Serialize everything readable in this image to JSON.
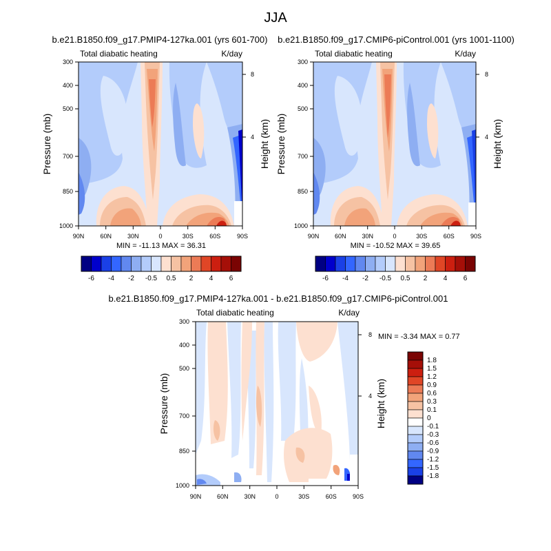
{
  "figure": {
    "title": "JJA"
  },
  "palette": {
    "full": [
      "#000083",
      "#0000cc",
      "#1a40e6",
      "#3366ff",
      "#6188f0",
      "#8eaef2",
      "#b3ccfb",
      "#d8e6fd",
      "#fde0d0",
      "#f6c2a3",
      "#f2a37a",
      "#ec7b56",
      "#e04626",
      "#cc1f10",
      "#a50f08",
      "#7a0403"
    ],
    "diff": [
      "#000083",
      "#1a40e6",
      "#3366ff",
      "#6188f0",
      "#8eaef2",
      "#b3ccfb",
      "#d8e6fd",
      "#ffffff",
      "#fde0d0",
      "#f6c2a3",
      "#f2a37a",
      "#ec7b56",
      "#e04626",
      "#cc1f10",
      "#a50f08",
      "#7a0403"
    ]
  },
  "chart_data": [
    {
      "id": "p1",
      "type": "contour",
      "title": "b.e21.B1850.f09_g17.PMIP4-127ka.001 (yrs 601-700)",
      "left_label": "Total diabatic heating",
      "right_label": "K/day",
      "ylabel": "Pressure (mb)",
      "ylabel_right": "Height (km)",
      "xticks": [
        "90N",
        "60N",
        "30N",
        "0",
        "30S",
        "60S",
        "90S"
      ],
      "xlim": [
        90,
        -90
      ],
      "yticks": [
        "300",
        "400",
        "500",
        "700",
        "850",
        "1000"
      ],
      "ylim": [
        1000,
        300
      ],
      "yticks_right": [
        "8",
        "4"
      ],
      "min_label": "MIN = -11.13  MAX =  36.31",
      "colorbar_ticks": [
        "-6",
        "-4",
        "-2",
        "-0.5",
        "0.5",
        "2",
        "4",
        "6"
      ],
      "colorbar_levels": [
        -6,
        -5,
        -4,
        -3,
        -2,
        -1,
        -0.5,
        0,
        0.5,
        1,
        2,
        3,
        4,
        5,
        6
      ]
    },
    {
      "id": "p2",
      "type": "contour",
      "title": "b.e21.B1850.f09_g17.CMIP6-piControl.001 (yrs 1001-1100)",
      "left_label": "Total diabatic heating",
      "right_label": "K/day",
      "ylabel": "Pressure (mb)",
      "ylabel_right": "Height (km)",
      "xticks": [
        "90N",
        "60N",
        "30N",
        "0",
        "30S",
        "60S",
        "90S"
      ],
      "xlim": [
        90,
        -90
      ],
      "yticks": [
        "300",
        "400",
        "500",
        "700",
        "850",
        "1000"
      ],
      "ylim": [
        1000,
        300
      ],
      "yticks_right": [
        "8",
        "4"
      ],
      "min_label": "MIN = -10.52  MAX =  39.65",
      "colorbar_ticks": [
        "-6",
        "-4",
        "-2",
        "-0.5",
        "0.5",
        "2",
        "4",
        "6"
      ],
      "colorbar_levels": [
        -6,
        -5,
        -4,
        -3,
        -2,
        -1,
        -0.5,
        0,
        0.5,
        1,
        2,
        3,
        4,
        5,
        6
      ]
    },
    {
      "id": "p3",
      "type": "contour",
      "title": "b.e21.B1850.f09_g17.PMIP4-127ka.001 - b.e21.B1850.f09_g17.CMIP6-piControl.001",
      "left_label": "Total diabatic heating",
      "right_label": "K/day",
      "ylabel": "Pressure (mb)",
      "ylabel_right": "Height (km)",
      "xticks": [
        "90N",
        "60N",
        "30N",
        "0",
        "30S",
        "60S",
        "90S"
      ],
      "xlim": [
        90,
        -90
      ],
      "yticks": [
        "300",
        "400",
        "500",
        "700",
        "850",
        "1000"
      ],
      "ylim": [
        1000,
        300
      ],
      "yticks_right": [
        "8",
        "4"
      ],
      "min_label": "MIN =  -3.34  MAX =   0.77",
      "colorbar_ticks": [
        "1.8",
        "1.5",
        "1.2",
        "0.9",
        "0.6",
        "0.3",
        "0.1",
        "0",
        "-0.1",
        "-0.3",
        "-0.6",
        "-0.9",
        "-1.2",
        "-1.5",
        "-1.8"
      ],
      "colorbar_levels": [
        -1.8,
        -1.5,
        -1.2,
        -0.9,
        -0.6,
        -0.3,
        -0.1,
        0,
        0.1,
        0.3,
        0.6,
        0.9,
        1.2,
        1.5,
        1.8
      ]
    }
  ]
}
